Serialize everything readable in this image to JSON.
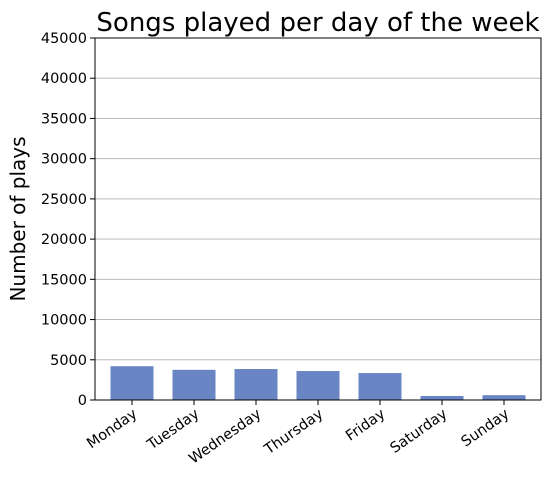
{
  "chart_data": {
    "type": "bar",
    "title": "Songs played per day of the week",
    "xlabel": "",
    "ylabel": "Number of plays",
    "categories": [
      "Monday",
      "Tuesday",
      "Wednesday",
      "Thursday",
      "Friday",
      "Saturday",
      "Sunday"
    ],
    "values": [
      4200,
      3750,
      3850,
      3600,
      3350,
      500,
      600
    ],
    "ylim": [
      0,
      45000
    ],
    "yticks": [
      0,
      5000,
      10000,
      15000,
      20000,
      25000,
      30000,
      35000,
      40000,
      45000
    ],
    "ytick_labels": [
      "0",
      "5000",
      "10000",
      "15000",
      "20000",
      "25000",
      "30000",
      "35000",
      "40000",
      "45000"
    ],
    "grid": "horizontal",
    "bar_color": "#6a85c4"
  }
}
